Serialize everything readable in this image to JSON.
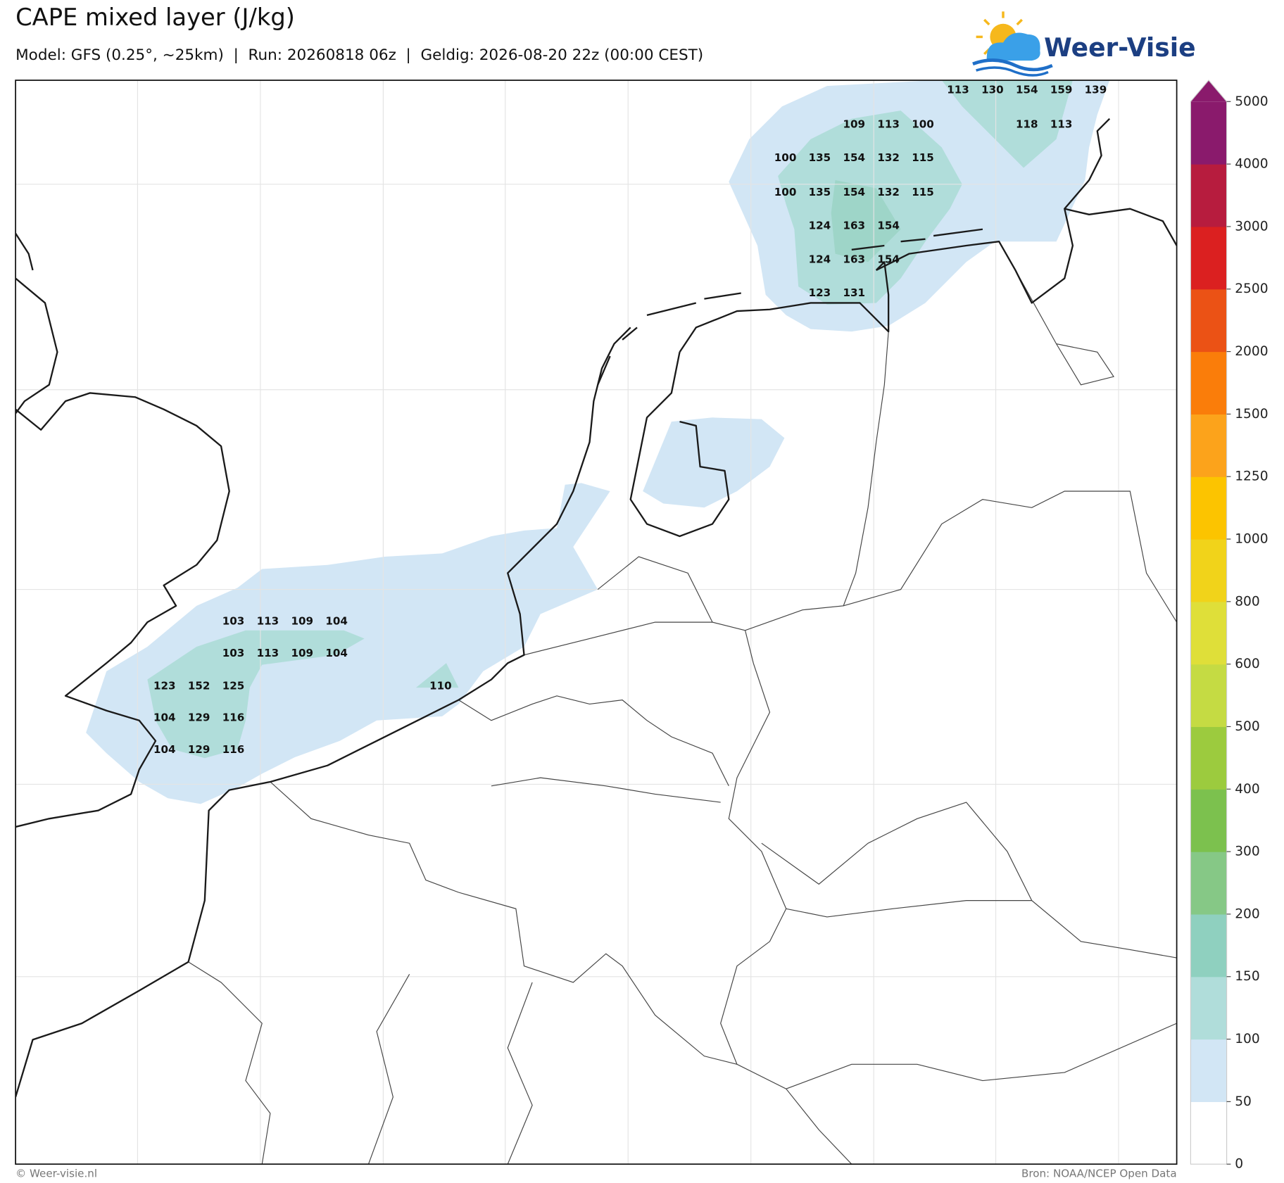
{
  "header": {
    "title": "CAPE mixed layer (J/kg)",
    "subtitle": "Model: GFS (0.25°, ~25km)  |  Run: 20260818 06z  |  Geldig: 2026-08-20 22z (00:00 CEST)",
    "logo": "Weer-Visie"
  },
  "map": {
    "labels": [
      [
        113,
        130,
        154,
        159,
        139
      ],
      [
        109,
        113,
        100
      ],
      [
        118,
        113
      ],
      [
        100,
        135,
        154,
        132,
        115
      ],
      [
        100,
        135,
        154,
        132,
        115
      ],
      [
        124,
        163,
        154
      ],
      [
        124,
        163,
        154
      ],
      [
        123,
        131
      ],
      [
        103,
        113,
        109,
        104
      ],
      [
        103,
        113,
        109,
        104
      ],
      [
        123,
        152,
        125
      ],
      [
        110
      ],
      [
        104,
        129,
        116
      ],
      [
        104,
        129,
        116
      ]
    ]
  },
  "colorbar": {
    "ticks": [
      0,
      50,
      100,
      150,
      200,
      300,
      400,
      500,
      600,
      800,
      1000,
      1250,
      1500,
      2000,
      2500,
      3000,
      4000,
      5000
    ],
    "colors": [
      "#ffffff",
      "#d2e6f5",
      "#b0ddda",
      "#8fd0bf",
      "#86c886",
      "#7cc14e",
      "#9ccb3e",
      "#c5db43",
      "#dfdf39",
      "#f1d31a",
      "#fcc400",
      "#fca31b",
      "#fa7d0a",
      "#eb5215",
      "#db2020",
      "#b71c3e",
      "#8a1a6c"
    ]
  },
  "footer": {
    "copyright": "© Weer-visie.nl",
    "source": "Bron: NOAA/NCEP Open Data"
  }
}
